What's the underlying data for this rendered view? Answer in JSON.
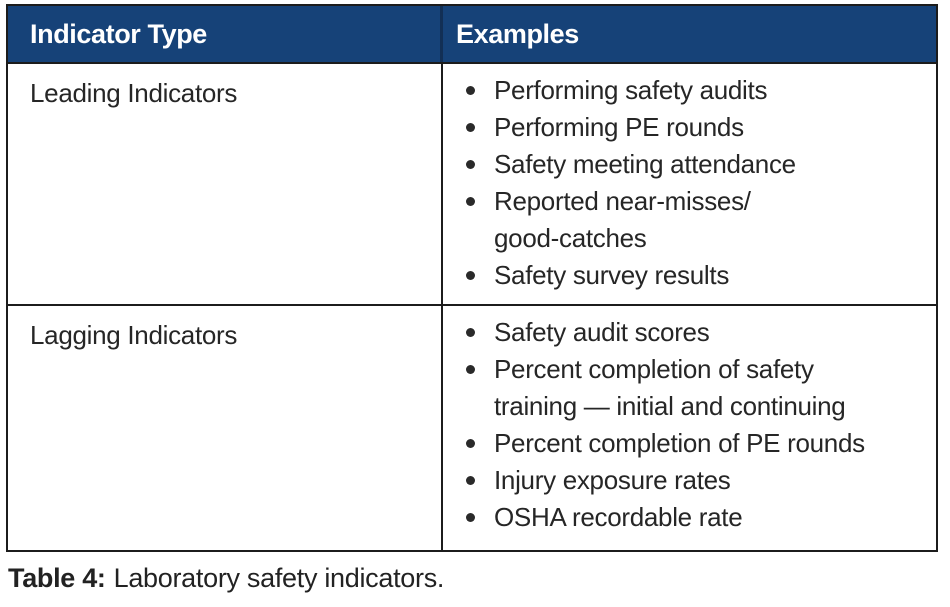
{
  "table": {
    "header": {
      "col1": "Indicator Type",
      "col2": "Examples"
    },
    "rows": [
      {
        "type": "Leading Indicators",
        "items": [
          [
            "Performing safety audits"
          ],
          [
            "Performing PE rounds"
          ],
          [
            "Safety meeting attendance"
          ],
          [
            "Reported near-misses/",
            "good-catches"
          ],
          [
            "Safety survey results"
          ]
        ]
      },
      {
        "type": "Lagging Indicators",
        "items": [
          [
            "Safety audit scores"
          ],
          [
            "Percent completion of safety",
            "training — initial and continuing"
          ],
          [
            "Percent completion of PE rounds"
          ],
          [
            "Injury exposure rates"
          ],
          [
            "OSHA recordable rate"
          ]
        ]
      }
    ]
  },
  "caption": {
    "label": "Table 4:",
    "text": "Laboratory safety indicators."
  },
  "colors": {
    "header_bg": "#164278",
    "header_text": "#FFFFFF",
    "body_text": "#262626",
    "border": "#1C1C1C"
  }
}
